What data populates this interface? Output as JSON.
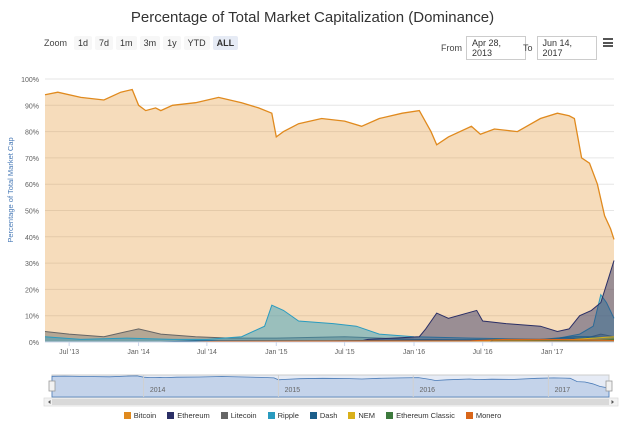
{
  "header": {
    "title": "Percentage of Total Market Capitalization (Dominance)"
  },
  "zoom": {
    "label": "Zoom",
    "buttons": [
      "1d",
      "7d",
      "1m",
      "3m",
      "1y",
      "YTD",
      "ALL"
    ],
    "active": "ALL"
  },
  "range": {
    "from_label": "From",
    "from_value": "Apr 28, 2013",
    "to_label": "To",
    "to_value": "Jun 14, 2017"
  },
  "menu": {
    "icon": "hamburger-menu-icon"
  },
  "colors": {
    "Bitcoin": "#e08a1e",
    "Ethereum": "#2b2f66",
    "Litecoin": "#666666",
    "Ripple": "#2a9bbf",
    "Dash": "#1b5e8a",
    "NEM": "#d9b01a",
    "Ethereum Classic": "#3d7a3d",
    "Monero": "#d9661a"
  },
  "chart_data": {
    "type": "area",
    "title": "Percentage of Total Market Capitalization (Dominance)",
    "ylabel": "Percentage of Total Market Cap",
    "xlabel": "",
    "ylim": [
      0,
      100
    ],
    "yticks": [
      "0%",
      "10%",
      "20%",
      "30%",
      "40%",
      "50%",
      "60%",
      "70%",
      "80%",
      "90%",
      "100%"
    ],
    "xlim": [
      "2013-04-28",
      "2017-06-14"
    ],
    "xticks": [
      {
        "label": "Jul '13",
        "date": "2013-07-01"
      },
      {
        "label": "Jan '14",
        "date": "2014-01-01"
      },
      {
        "label": "Jul '14",
        "date": "2014-07-01"
      },
      {
        "label": "Jan '15",
        "date": "2015-01-01"
      },
      {
        "label": "Jul '15",
        "date": "2015-07-01"
      },
      {
        "label": "Jan '16",
        "date": "2016-01-01"
      },
      {
        "label": "Jul '16",
        "date": "2016-07-01"
      },
      {
        "label": "Jan '17",
        "date": "2017-01-01"
      }
    ],
    "grid": true,
    "legend_position": "bottom",
    "series": [
      {
        "name": "Bitcoin",
        "points": [
          [
            "2013-04-28",
            94
          ],
          [
            "2013-06-01",
            95
          ],
          [
            "2013-08-01",
            93
          ],
          [
            "2013-10-01",
            92
          ],
          [
            "2013-11-15",
            95
          ],
          [
            "2013-12-15",
            96
          ],
          [
            "2014-01-01",
            90
          ],
          [
            "2014-01-20",
            88
          ],
          [
            "2014-02-15",
            89
          ],
          [
            "2014-03-01",
            88
          ],
          [
            "2014-04-01",
            90
          ],
          [
            "2014-06-01",
            91
          ],
          [
            "2014-08-01",
            93
          ],
          [
            "2014-10-01",
            91
          ],
          [
            "2014-11-15",
            89
          ],
          [
            "2014-12-20",
            87
          ],
          [
            "2015-01-01",
            78
          ],
          [
            "2015-01-20",
            80
          ],
          [
            "2015-03-01",
            83
          ],
          [
            "2015-05-01",
            85
          ],
          [
            "2015-07-01",
            84
          ],
          [
            "2015-08-15",
            82
          ],
          [
            "2015-10-01",
            85
          ],
          [
            "2015-12-01",
            87
          ],
          [
            "2016-01-15",
            88
          ],
          [
            "2016-02-15",
            80
          ],
          [
            "2016-03-01",
            75
          ],
          [
            "2016-04-01",
            78
          ],
          [
            "2016-06-01",
            82
          ],
          [
            "2016-06-25",
            79
          ],
          [
            "2016-08-01",
            81
          ],
          [
            "2016-10-01",
            80
          ],
          [
            "2016-12-01",
            85
          ],
          [
            "2017-01-15",
            87
          ],
          [
            "2017-02-15",
            86
          ],
          [
            "2017-03-01",
            85
          ],
          [
            "2017-03-20",
            70
          ],
          [
            "2017-04-10",
            68
          ],
          [
            "2017-05-01",
            60
          ],
          [
            "2017-05-20",
            48
          ],
          [
            "2017-06-05",
            43
          ],
          [
            "2017-06-14",
            39
          ]
        ]
      },
      {
        "name": "Ethereum",
        "points": [
          [
            "2013-04-28",
            0
          ],
          [
            "2015-08-01",
            0
          ],
          [
            "2015-09-01",
            1
          ],
          [
            "2016-01-15",
            2
          ],
          [
            "2016-02-01",
            5
          ],
          [
            "2016-03-01",
            11
          ],
          [
            "2016-04-01",
            9
          ],
          [
            "2016-06-15",
            12
          ],
          [
            "2016-07-01",
            8
          ],
          [
            "2016-09-01",
            7
          ],
          [
            "2016-12-01",
            6
          ],
          [
            "2017-01-15",
            4
          ],
          [
            "2017-02-15",
            5
          ],
          [
            "2017-03-15",
            10
          ],
          [
            "2017-04-15",
            12
          ],
          [
            "2017-05-10",
            15
          ],
          [
            "2017-06-01",
            25
          ],
          [
            "2017-06-14",
            31
          ]
        ]
      },
      {
        "name": "Litecoin",
        "points": [
          [
            "2013-04-28",
            4
          ],
          [
            "2013-07-01",
            3
          ],
          [
            "2013-10-01",
            2
          ],
          [
            "2013-12-01",
            4
          ],
          [
            "2014-01-01",
            5
          ],
          [
            "2014-03-01",
            3
          ],
          [
            "2014-06-01",
            2
          ],
          [
            "2014-09-01",
            1.5
          ],
          [
            "2015-01-01",
            1.5
          ],
          [
            "2015-07-01",
            2
          ],
          [
            "2016-01-01",
            1
          ],
          [
            "2016-06-01",
            0.8
          ],
          [
            "2017-01-01",
            1
          ],
          [
            "2017-04-01",
            1.5
          ],
          [
            "2017-05-10",
            3
          ],
          [
            "2017-06-14",
            2
          ]
        ]
      },
      {
        "name": "Ripple",
        "points": [
          [
            "2013-04-28",
            2
          ],
          [
            "2013-08-01",
            1
          ],
          [
            "2013-12-01",
            1.5
          ],
          [
            "2014-04-01",
            1
          ],
          [
            "2014-07-01",
            1
          ],
          [
            "2014-10-01",
            2
          ],
          [
            "2014-12-01",
            6
          ],
          [
            "2014-12-20",
            14
          ],
          [
            "2015-01-20",
            12
          ],
          [
            "2015-03-01",
            8
          ],
          [
            "2015-06-01",
            7
          ],
          [
            "2015-08-01",
            6
          ],
          [
            "2015-10-01",
            3
          ],
          [
            "2016-01-01",
            2
          ],
          [
            "2016-06-01",
            1.5
          ],
          [
            "2017-01-01",
            1
          ],
          [
            "2017-03-15",
            3
          ],
          [
            "2017-04-20",
            6
          ],
          [
            "2017-05-10",
            18
          ],
          [
            "2017-05-25",
            15
          ],
          [
            "2017-06-14",
            9
          ]
        ]
      },
      {
        "name": "Dash",
        "points": [
          [
            "2013-04-28",
            0
          ],
          [
            "2014-03-01",
            0
          ],
          [
            "2014-06-01",
            0.5
          ],
          [
            "2015-06-01",
            0.5
          ],
          [
            "2016-01-01",
            0.7
          ],
          [
            "2016-12-01",
            1
          ],
          [
            "2017-03-01",
            2
          ],
          [
            "2017-04-15",
            2
          ],
          [
            "2017-06-14",
            1.5
          ]
        ]
      },
      {
        "name": "NEM",
        "points": [
          [
            "2013-04-28",
            0
          ],
          [
            "2015-04-01",
            0
          ],
          [
            "2016-01-01",
            0.3
          ],
          [
            "2016-12-01",
            0.4
          ],
          [
            "2017-03-01",
            1
          ],
          [
            "2017-06-14",
            2
          ]
        ]
      },
      {
        "name": "Ethereum Classic",
        "points": [
          [
            "2013-04-28",
            0
          ],
          [
            "2016-07-20",
            0
          ],
          [
            "2016-08-01",
            1
          ],
          [
            "2016-12-01",
            0.6
          ],
          [
            "2017-04-01",
            0.5
          ],
          [
            "2017-06-14",
            1
          ]
        ]
      },
      {
        "name": "Monero",
        "points": [
          [
            "2013-04-28",
            0
          ],
          [
            "2014-06-01",
            0
          ],
          [
            "2014-08-01",
            0.3
          ],
          [
            "2016-06-01",
            0.5
          ],
          [
            "2016-09-01",
            1
          ],
          [
            "2017-01-01",
            1
          ],
          [
            "2017-06-14",
            0.6
          ]
        ]
      }
    ],
    "navigator": {
      "xticks": [
        {
          "label": "2014",
          "date": "2014-01-01"
        },
        {
          "label": "2015",
          "date": "2015-01-01"
        },
        {
          "label": "2016",
          "date": "2016-01-01"
        },
        {
          "label": "2017",
          "date": "2017-01-01"
        }
      ]
    }
  }
}
